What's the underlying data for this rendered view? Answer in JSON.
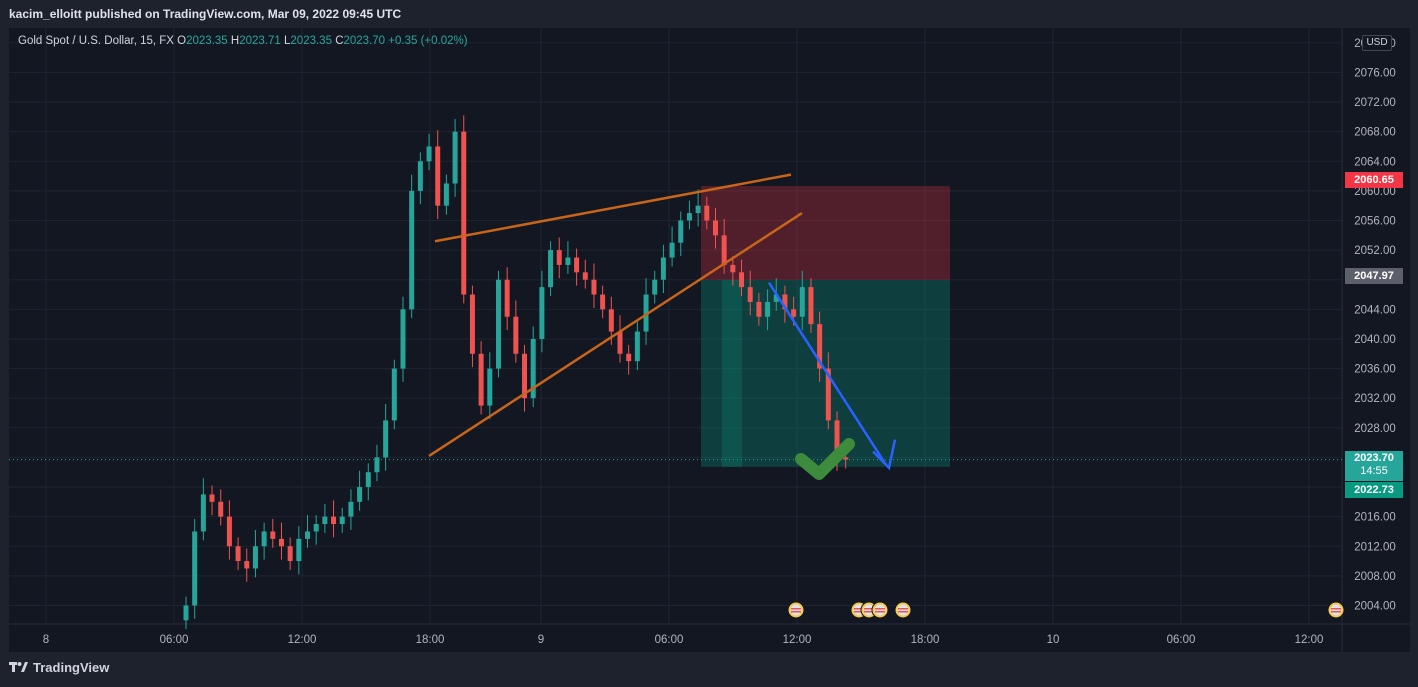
{
  "header": {
    "published": "kacim_elloitt published on TradingView.com, Mar 09, 2022 09:45 UTC"
  },
  "legend": {
    "symbol": "Gold Spot / U.S. Dollar, 15, FX",
    "o_label": "O",
    "o": "2023.35",
    "h_label": "H",
    "h": "2023.71",
    "l_label": "L",
    "l": "2023.35",
    "c_label": "C",
    "c": "2023.70",
    "change": "+0.35 (+0.02%)"
  },
  "currency": "USD",
  "price_tags": {
    "stop": "2060.65",
    "entry": "2047.97",
    "last": "2023.70",
    "countdown": "14:55",
    "target": "2022.73"
  },
  "footer": {
    "brand": "TradingView"
  },
  "colors": {
    "up": "#26a69a",
    "down": "#ef5350",
    "bg": "#131722",
    "wedge": "#c8651b",
    "arrow": "#2962ff",
    "check": "#3d8b3d"
  },
  "chart_data": {
    "type": "candlestick",
    "y_ticks": [
      "2004.00",
      "2008.00",
      "2012.00",
      "2016.00",
      "2020.00",
      "2024.00",
      "2028.00",
      "2032.00",
      "2036.00",
      "2040.00",
      "2044.00",
      "2048.00",
      "2052.00",
      "2056.00",
      "2060.00",
      "2064.00",
      "2068.00",
      "2072.00",
      "2076.00",
      "2080.00"
    ],
    "x_ticks": [
      "8",
      "06:00",
      "12:00",
      "18:00",
      "9",
      "06:00",
      "12:00",
      "18:00",
      "10",
      "06:00",
      "12:00"
    ],
    "ylim": [
      2001.5,
      2082
    ],
    "close_series": [
      2004,
      2014,
      2019,
      2018,
      2016,
      2012,
      2010,
      2009,
      2012,
      2014,
      2013,
      2012,
      2010,
      2013,
      2014,
      2015,
      2016,
      2015,
      2016,
      2018,
      2020,
      2022,
      2024,
      2029,
      2036,
      2044,
      2060,
      2064,
      2066,
      2058,
      2061,
      2068,
      2046,
      2038,
      2031,
      2036,
      2048,
      2043,
      2038,
      2032,
      2040,
      2047,
      2052,
      2050,
      2051,
      2049,
      2048,
      2046,
      2044,
      2041,
      2038,
      2037,
      2041,
      2046,
      2048,
      2051,
      2053,
      2056,
      2057,
      2058,
      2056,
      2054,
      2050,
      2049,
      2047,
      2045,
      2043,
      2045,
      2046,
      2044,
      2043,
      2047,
      2042,
      2036,
      2029,
      2024,
      2023.7
    ],
    "position": {
      "entry": 2047.97,
      "stop": 2060.65,
      "target": 2022.73
    },
    "last_price": 2023.7
  }
}
